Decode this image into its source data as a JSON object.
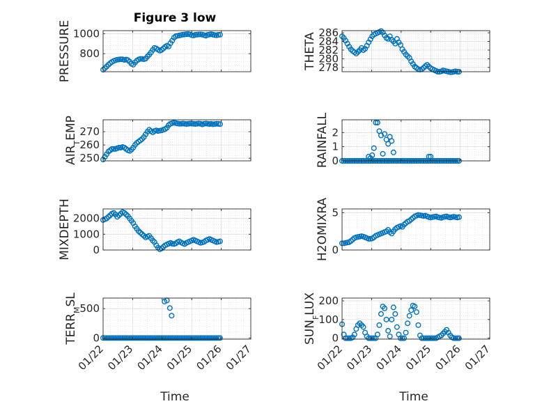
{
  "figure": {
    "title": "Figure 3 low",
    "xlabel": "Time",
    "xticklabels": [
      "01/22",
      "01/23",
      "01/24",
      "01/25",
      "01/26",
      "01/27"
    ],
    "marker_color": "#0072bd"
  },
  "chart_data": [
    {
      "type": "scatter",
      "ylabel": "PRESSURE",
      "ylim": [
        620,
        1030
      ],
      "yticks": [
        800,
        1000
      ],
      "grid": true,
      "x": [
        0.0,
        0.06,
        0.12,
        0.18,
        0.24,
        0.3,
        0.36,
        0.42,
        0.48,
        0.54,
        0.6,
        0.66,
        0.72,
        0.78,
        0.84,
        0.9,
        0.96,
        1.02,
        1.08,
        1.14,
        1.2,
        1.26,
        1.32,
        1.38,
        1.44,
        1.5,
        1.56,
        1.62,
        1.68,
        1.74,
        1.8,
        1.86,
        1.92,
        1.98,
        2.04,
        2.1,
        2.16,
        2.22,
        2.28,
        2.34,
        2.4,
        2.46,
        2.52,
        2.58,
        2.64,
        2.7,
        2.76,
        2.82,
        2.88,
        2.94,
        3.0,
        3.06,
        3.12,
        3.18,
        3.24,
        3.3,
        3.36,
        3.42,
        3.48,
        3.54,
        3.6,
        3.66,
        3.72,
        3.78,
        3.84,
        3.9,
        3.96
      ],
      "y": [
        640,
        655,
        672,
        690,
        705,
        718,
        728,
        735,
        740,
        742,
        744,
        743,
        738,
        742,
        736,
        720,
        700,
        690,
        712,
        730,
        742,
        748,
        748,
        745,
        750,
        772,
        790,
        812,
        838,
        858,
        852,
        840,
        830,
        838,
        852,
        868,
        880,
        872,
        905,
        930,
        960,
        975,
        978,
        982,
        986,
        990,
        992,
        994,
        996,
        992,
        985,
        982,
        988,
        990,
        992,
        993,
        990,
        985,
        980,
        988,
        992,
        995,
        990,
        986,
        984,
        988,
        990
      ]
    },
    {
      "type": "scatter",
      "ylabel": "THETA",
      "ylim": [
        277,
        286.5
      ],
      "yticks": [
        278,
        280,
        282,
        284,
        286
      ],
      "grid": true,
      "x": [
        0.0,
        0.06,
        0.12,
        0.18,
        0.24,
        0.3,
        0.36,
        0.42,
        0.48,
        0.54,
        0.6,
        0.66,
        0.72,
        0.78,
        0.84,
        0.9,
        0.96,
        1.02,
        1.08,
        1.14,
        1.2,
        1.26,
        1.32,
        1.38,
        1.44,
        1.5,
        1.56,
        1.62,
        1.68,
        1.74,
        1.8,
        1.86,
        1.92,
        1.98,
        2.04,
        2.1,
        2.16,
        2.22,
        2.28,
        2.34,
        2.4,
        2.46,
        2.52,
        2.58,
        2.64,
        2.7,
        2.76,
        2.82,
        2.88,
        2.94,
        3.0,
        3.06,
        3.12,
        3.18,
        3.24,
        3.3,
        3.36,
        3.42,
        3.48,
        3.54,
        3.6,
        3.66,
        3.72,
        3.78,
        3.84,
        3.9,
        3.96
      ],
      "y": [
        285.2,
        284.8,
        284.2,
        283.5,
        282.8,
        282.2,
        281.8,
        281.5,
        281.2,
        281.6,
        282.0,
        282.5,
        282.0,
        282.3,
        283.0,
        283.8,
        284.5,
        285.2,
        285.6,
        285.8,
        286.0,
        286.2,
        286.4,
        286.1,
        285.4,
        284.8,
        284.6,
        285.2,
        284.4,
        284.0,
        283.5,
        284.6,
        283.8,
        283.2,
        282.2,
        281.6,
        281.0,
        280.6,
        280.2,
        279.4,
        278.8,
        278.2,
        277.9,
        277.6,
        277.5,
        277.6,
        277.9,
        278.3,
        278.6,
        278.2,
        277.8,
        277.6,
        277.4,
        277.2,
        277.0,
        277.0,
        277.1,
        277.3,
        277.2,
        277.1,
        277.0,
        276.9,
        276.9,
        277.0,
        277.1,
        277.0,
        277.0
      ]
    },
    {
      "type": "scatter",
      "ylabel": "AIR_TEMP",
      "ylim": [
        248,
        279
      ],
      "yticks": [
        250,
        260,
        270
      ],
      "grid": true,
      "x": [
        0.0,
        0.06,
        0.12,
        0.18,
        0.24,
        0.3,
        0.36,
        0.42,
        0.48,
        0.54,
        0.6,
        0.66,
        0.72,
        0.78,
        0.84,
        0.9,
        0.96,
        1.02,
        1.08,
        1.14,
        1.2,
        1.26,
        1.32,
        1.38,
        1.44,
        1.5,
        1.56,
        1.62,
        1.68,
        1.74,
        1.8,
        1.86,
        1.92,
        1.98,
        2.04,
        2.1,
        2.16,
        2.22,
        2.28,
        2.34,
        2.4,
        2.46,
        2.52,
        2.58,
        2.64,
        2.7,
        2.76,
        2.82,
        2.88,
        2.94,
        3.0,
        3.06,
        3.12,
        3.18,
        3.24,
        3.3,
        3.36,
        3.42,
        3.48,
        3.54,
        3.6,
        3.66,
        3.72,
        3.78,
        3.84,
        3.9,
        3.96
      ],
      "y": [
        249,
        251,
        253,
        255,
        256,
        257,
        257,
        257,
        257.5,
        258,
        258,
        258.5,
        258,
        257,
        256,
        255.5,
        256.5,
        258,
        260,
        261.5,
        262.5,
        263.5,
        264.5,
        266,
        268,
        270,
        271.5,
        270.5,
        269.5,
        270.5,
        271,
        270.5,
        270.8,
        271,
        271.5,
        272,
        273,
        275,
        276,
        276.5,
        276.8,
        276.5,
        276.2,
        276,
        276,
        276.2,
        276,
        275.8,
        276,
        276.2,
        276.1,
        276,
        275.8,
        276,
        276.2,
        276,
        275.5,
        276,
        276.2,
        276,
        275.8,
        276,
        275.6,
        275.8,
        276,
        275.9,
        275.7
      ]
    },
    {
      "type": "scatter",
      "ylabel": "RAINFALL",
      "ylim": [
        0,
        2.9
      ],
      "yticks": [
        0,
        1,
        2
      ],
      "grid": true,
      "x": [
        0.0,
        0.06,
        0.12,
        0.18,
        0.24,
        0.3,
        0.36,
        0.42,
        0.48,
        0.54,
        0.6,
        0.66,
        0.72,
        0.78,
        0.84,
        0.9,
        0.96,
        1.02,
        1.08,
        1.14,
        1.2,
        1.26,
        1.32,
        1.38,
        1.44,
        1.5,
        1.56,
        1.62,
        1.68,
        1.74,
        1.8,
        1.86,
        1.92,
        1.98,
        2.04,
        2.1,
        2.16,
        2.22,
        2.28,
        2.34,
        2.4,
        2.46,
        2.52,
        2.58,
        2.64,
        2.7,
        2.76,
        2.82,
        2.88,
        2.94,
        3.0,
        3.06,
        3.12,
        3.18,
        3.24,
        3.3,
        3.36,
        3.42,
        3.48,
        3.54,
        3.6,
        3.66,
        3.72,
        3.78,
        3.84,
        3.9,
        3.96,
        0.9,
        0.96,
        1.02,
        1.08,
        1.14,
        1.2,
        1.26,
        1.32,
        1.38,
        1.44,
        1.5,
        1.56,
        1.62,
        1.68,
        1.74,
        2.94,
        3.0
      ],
      "y": [
        0,
        0,
        0,
        0,
        0,
        0,
        0,
        0,
        0,
        0,
        0,
        0,
        0,
        0,
        0,
        0,
        0,
        0,
        0,
        0,
        0,
        0,
        0,
        0,
        0,
        0,
        0,
        0,
        0,
        0,
        0,
        0,
        0,
        0,
        0,
        0,
        0,
        0,
        0,
        0,
        0,
        0,
        0,
        0,
        0,
        0,
        0,
        0,
        0,
        0,
        0,
        0,
        0,
        0,
        0,
        0,
        0,
        0,
        0,
        0,
        0,
        0,
        0,
        0,
        0,
        0,
        0,
        0.3,
        0.2,
        0.4,
        0.9,
        2.7,
        2.7,
        2.1,
        1.8,
        0.5,
        1.9,
        1.5,
        1.2,
        1.7,
        1.4,
        0.6,
        0.3,
        0.3
      ]
    },
    {
      "type": "scatter",
      "ylabel": "MIXDEPTH",
      "ylim": [
        0,
        2600
      ],
      "yticks": [
        0,
        1000,
        2000
      ],
      "grid": true,
      "x": [
        0.0,
        0.06,
        0.12,
        0.18,
        0.24,
        0.3,
        0.36,
        0.42,
        0.48,
        0.54,
        0.6,
        0.66,
        0.72,
        0.78,
        0.84,
        0.9,
        0.96,
        1.02,
        1.08,
        1.14,
        1.2,
        1.26,
        1.32,
        1.38,
        1.44,
        1.5,
        1.56,
        1.62,
        1.68,
        1.74,
        1.8,
        1.86,
        1.92,
        1.98,
        2.04,
        2.1,
        2.16,
        2.22,
        2.28,
        2.34,
        2.4,
        2.46,
        2.52,
        2.58,
        2.64,
        2.7,
        2.76,
        2.82,
        2.88,
        2.94,
        3.0,
        3.06,
        3.12,
        3.18,
        3.24,
        3.3,
        3.36,
        3.42,
        3.48,
        3.54,
        3.6,
        3.66,
        3.72,
        3.78,
        3.84,
        3.9,
        3.96
      ],
      "y": [
        1900,
        1950,
        2000,
        2100,
        2200,
        2300,
        2350,
        2250,
        2100,
        2200,
        2300,
        2400,
        2350,
        2250,
        2150,
        2000,
        1850,
        1700,
        1500,
        1350,
        1200,
        1100,
        1000,
        900,
        800,
        850,
        900,
        750,
        600,
        500,
        300,
        150,
        50,
        100,
        200,
        300,
        350,
        400,
        450,
        400,
        380,
        420,
        500,
        550,
        480,
        420,
        380,
        450,
        500,
        550,
        600,
        650,
        600,
        550,
        500,
        450,
        480,
        520,
        600,
        650,
        700,
        650,
        600,
        550,
        500,
        520,
        550
      ]
    },
    {
      "type": "scatter",
      "ylabel": "H2OMIXRA",
      "ylim": [
        0,
        5.5
      ],
      "yticks": [
        0,
        5
      ],
      "grid": true,
      "x": [
        0.0,
        0.06,
        0.12,
        0.18,
        0.24,
        0.3,
        0.36,
        0.42,
        0.48,
        0.54,
        0.6,
        0.66,
        0.72,
        0.78,
        0.84,
        0.9,
        0.96,
        1.02,
        1.08,
        1.14,
        1.2,
        1.26,
        1.32,
        1.38,
        1.44,
        1.5,
        1.56,
        1.62,
        1.68,
        1.74,
        1.8,
        1.86,
        1.92,
        1.98,
        2.04,
        2.1,
        2.16,
        2.22,
        2.28,
        2.34,
        2.4,
        2.46,
        2.52,
        2.58,
        2.64,
        2.7,
        2.76,
        2.82,
        2.88,
        2.94,
        3.0,
        3.06,
        3.12,
        3.18,
        3.24,
        3.3,
        3.36,
        3.42,
        3.48,
        3.54,
        3.6,
        3.66,
        3.72,
        3.78,
        3.84,
        3.9,
        3.96
      ],
      "y": [
        0.9,
        0.9,
        0.95,
        1.0,
        1.05,
        1.2,
        1.4,
        1.6,
        1.7,
        1.75,
        1.8,
        1.85,
        1.8,
        1.7,
        1.6,
        1.5,
        1.5,
        1.55,
        1.7,
        1.9,
        2.0,
        2.1,
        2.2,
        2.3,
        2.4,
        2.5,
        2.7,
        2.4,
        2.2,
        2.5,
        2.8,
        3.0,
        3.1,
        3.2,
        3.1,
        3.4,
        3.6,
        3.8,
        3.9,
        4.1,
        4.3,
        4.5,
        4.6,
        4.7,
        4.65,
        4.6,
        4.55,
        4.6,
        4.5,
        4.4,
        4.35,
        4.4,
        4.45,
        4.5,
        4.4,
        4.35,
        4.3,
        4.4,
        4.45,
        4.5,
        4.4,
        4.35,
        4.4,
        4.45,
        4.4,
        4.35,
        4.4
      ]
    },
    {
      "type": "scatter",
      "ylabel": "TERR_MSL",
      "ylim": [
        -20,
        680
      ],
      "yticks": [
        0,
        500
      ],
      "grid": true,
      "x": [
        0.0,
        0.06,
        0.12,
        0.18,
        0.24,
        0.3,
        0.36,
        0.42,
        0.48,
        0.54,
        0.6,
        0.66,
        0.72,
        0.78,
        0.84,
        0.9,
        0.96,
        1.02,
        1.08,
        1.14,
        1.2,
        1.26,
        1.32,
        1.38,
        1.44,
        1.5,
        1.56,
        1.62,
        1.68,
        1.74,
        1.8,
        1.86,
        1.92,
        1.98,
        2.04,
        2.1,
        2.16,
        2.22,
        2.28,
        2.34,
        2.4,
        2.46,
        2.52,
        2.58,
        2.64,
        2.7,
        2.76,
        2.82,
        2.88,
        2.94,
        3.0,
        3.06,
        3.12,
        3.18,
        3.24,
        3.3,
        3.36,
        3.42,
        3.48,
        3.54,
        3.6,
        3.66,
        3.72,
        3.78,
        3.84,
        3.9,
        3.96,
        2.08,
        2.16,
        2.26,
        2.32
      ],
      "y": [
        0,
        0,
        0,
        0,
        0,
        0,
        0,
        0,
        0,
        0,
        0,
        0,
        0,
        0,
        0,
        0,
        0,
        0,
        0,
        0,
        0,
        0,
        0,
        0,
        0,
        0,
        0,
        0,
        0,
        0,
        0,
        0,
        0,
        0,
        0,
        0,
        0,
        0,
        0,
        0,
        0,
        0,
        0,
        0,
        0,
        0,
        0,
        0,
        0,
        0,
        0,
        0,
        0,
        0,
        0,
        0,
        0,
        0,
        0,
        0,
        0,
        0,
        0,
        0,
        0,
        0,
        0,
        620,
        640,
        510,
        380
      ]
    },
    {
      "type": "scatter",
      "ylabel": "SUN_FLUX",
      "ylim": [
        -5,
        215
      ],
      "yticks": [
        0,
        100,
        200
      ],
      "grid": true,
      "x": [
        0.0,
        0.06,
        0.12,
        0.18,
        0.24,
        0.3,
        0.36,
        0.42,
        0.48,
        0.54,
        0.6,
        0.66,
        0.72,
        0.78,
        0.84,
        0.9,
        0.96,
        1.02,
        1.08,
        1.14,
        1.2,
        1.26,
        1.32,
        1.38,
        1.44,
        1.5,
        1.56,
        1.62,
        1.68,
        1.74,
        1.8,
        1.86,
        1.92,
        1.98,
        2.04,
        2.1,
        2.16,
        2.22,
        2.28,
        2.34,
        2.4,
        2.46,
        2.52,
        2.58,
        2.64,
        2.7,
        2.76,
        2.82,
        2.88,
        2.94,
        3.0,
        3.06,
        3.12,
        3.18,
        3.24,
        3.3,
        3.36,
        3.42,
        3.48,
        3.54,
        3.6,
        3.66,
        3.72,
        3.78,
        3.84,
        3.9,
        3.96
      ],
      "y": [
        75,
        20,
        0,
        0,
        0,
        0,
        5,
        20,
        50,
        70,
        80,
        70,
        60,
        30,
        10,
        0,
        0,
        0,
        0,
        0,
        20,
        70,
        130,
        170,
        160,
        100,
        40,
        10,
        100,
        165,
        130,
        60,
        20,
        0,
        0,
        0,
        30,
        80,
        120,
        150,
        175,
        170,
        140,
        70,
        15,
        0,
        0,
        0,
        0,
        0,
        0,
        0,
        0,
        0,
        5,
        10,
        15,
        25,
        35,
        45,
        30,
        15,
        5,
        0,
        0,
        0,
        0
      ]
    }
  ]
}
